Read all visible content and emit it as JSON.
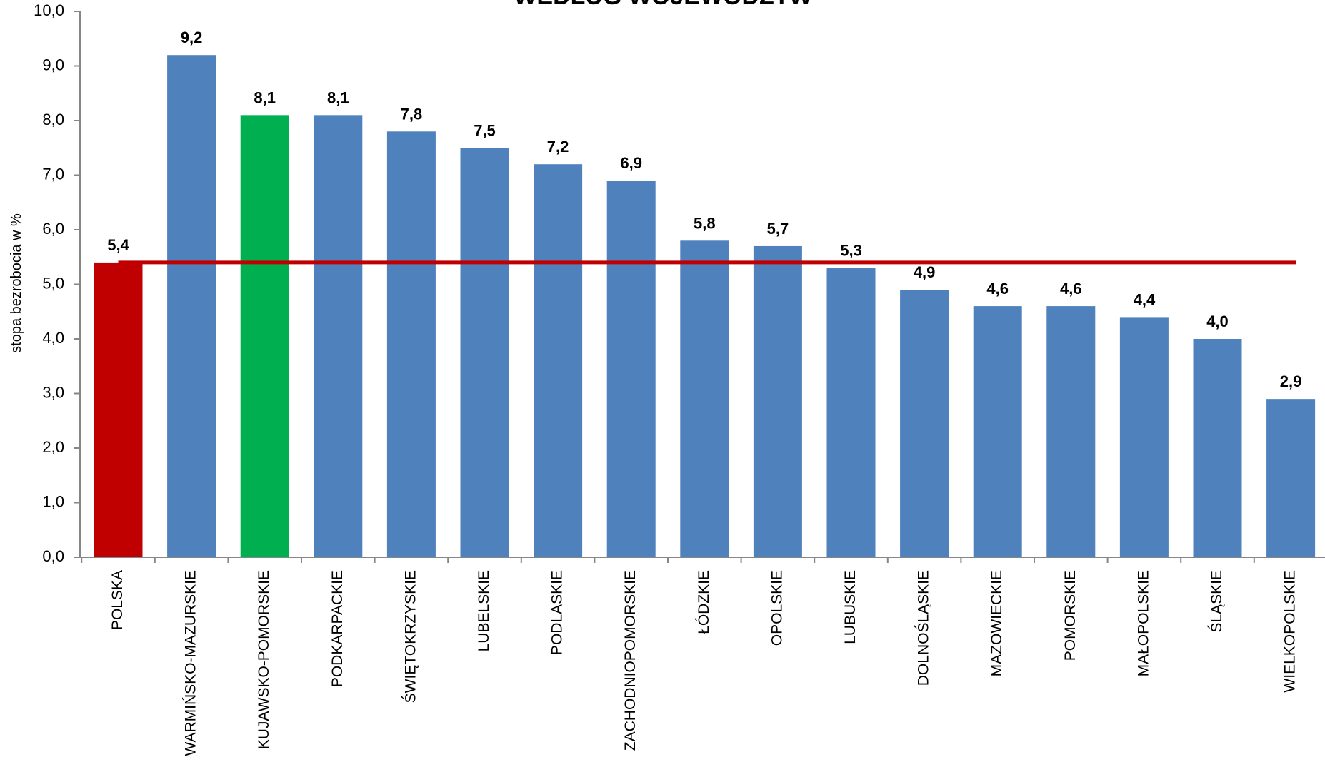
{
  "chart_data": {
    "type": "bar",
    "title": "WEDŁUG WOJEWÓDZTW",
    "xlabel": "",
    "ylabel": "stopa bezrobocia w %",
    "ylim": [
      0,
      10
    ],
    "ytick_labels": [
      "0,0",
      "1,0",
      "2,0",
      "3,0",
      "4,0",
      "5,0",
      "6,0",
      "7,0",
      "8,0",
      "9,0",
      "10,0"
    ],
    "categories": [
      "POLSKA",
      "WARMIŃSKO-MAZURSKIE",
      "KUJAWSKO-POMORSKIE",
      "PODKARPACKIE",
      "ŚWIĘTOKRZYSKIE",
      "LUBELSKIE",
      "PODLASKIE",
      "ZACHODNIOPOMORSKIE",
      "ŁÓDZKIE",
      "OPOLSKIE",
      "LUBUSKIE",
      "DOLNOŚLĄSKIE",
      "MAZOWIECKIE",
      "POMORSKIE",
      "MAŁOPOLSKIE",
      "ŚLĄSKIE",
      "WIELKOPOLSKIE"
    ],
    "values": [
      5.4,
      9.2,
      8.1,
      8.1,
      7.8,
      7.5,
      7.2,
      6.9,
      5.8,
      5.7,
      5.3,
      4.9,
      4.6,
      4.6,
      4.4,
      4.0,
      2.9
    ],
    "value_labels": [
      "5,4",
      "9,2",
      "8,1",
      "8,1",
      "7,8",
      "7,5",
      "7,2",
      "6,9",
      "5,8",
      "5,7",
      "5,3",
      "4,9",
      "4,6",
      "4,6",
      "4,4",
      "4,0",
      "2,9"
    ],
    "bar_colors": [
      "#c00000",
      "#4f81bd",
      "#00b050",
      "#4f81bd",
      "#4f81bd",
      "#4f81bd",
      "#4f81bd",
      "#4f81bd",
      "#4f81bd",
      "#4f81bd",
      "#4f81bd",
      "#4f81bd",
      "#4f81bd",
      "#4f81bd",
      "#4f81bd",
      "#4f81bd",
      "#4f81bd"
    ],
    "reference_line": {
      "value": 5.4,
      "color": "#c00000"
    },
    "grid": false,
    "legend": "none"
  }
}
